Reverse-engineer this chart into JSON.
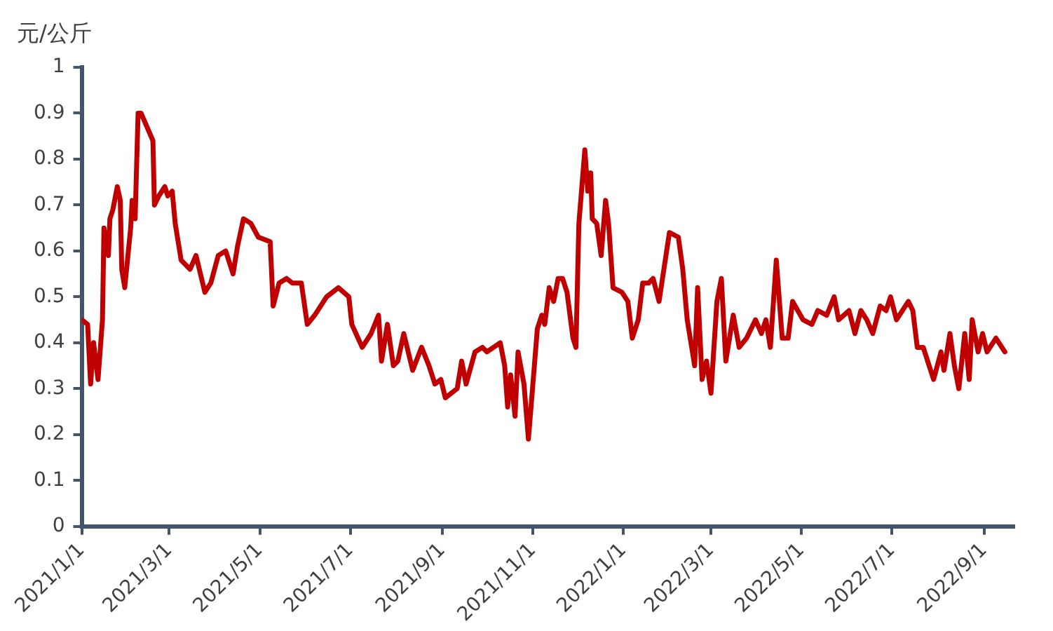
{
  "chart_data": {
    "type": "line",
    "ylabel": "元/公斤",
    "x": [
      "2021-01-01",
      "2021-01-05",
      "2021-01-07",
      "2021-01-09",
      "2021-01-12",
      "2021-01-15",
      "2021-01-16",
      "2021-01-19",
      "2021-01-20",
      "2021-01-22",
      "2021-01-25",
      "2021-01-27",
      "2021-01-28",
      "2021-01-30",
      "2021-02-03",
      "2021-02-04",
      "2021-02-06",
      "2021-02-08",
      "2021-02-10",
      "2021-02-18",
      "2021-02-19",
      "2021-02-22",
      "2021-02-26",
      "2021-02-28",
      "2021-03-03",
      "2021-03-05",
      "2021-03-09",
      "2021-03-15",
      "2021-03-19",
      "2021-03-25",
      "2021-03-29",
      "2021-04-03",
      "2021-04-08",
      "2021-04-13",
      "2021-04-16",
      "2021-04-20",
      "2021-04-25",
      "2021-04-30",
      "2021-05-08",
      "2021-05-10",
      "2021-05-14",
      "2021-05-19",
      "2021-05-23",
      "2021-05-29",
      "2021-06-02",
      "2021-06-07",
      "2021-06-15",
      "2021-06-23",
      "2021-06-30",
      "2021-07-02",
      "2021-07-09",
      "2021-07-15",
      "2021-07-20",
      "2021-07-22",
      "2021-07-26",
      "2021-07-30",
      "2021-08-02",
      "2021-08-06",
      "2021-08-12",
      "2021-08-18",
      "2021-08-23",
      "2021-08-27",
      "2021-08-31",
      "2021-09-03",
      "2021-09-11",
      "2021-09-14",
      "2021-09-17",
      "2021-09-23",
      "2021-09-28",
      "2021-10-01",
      "2021-10-10",
      "2021-10-13",
      "2021-10-15",
      "2021-10-17",
      "2021-10-20",
      "2021-10-22",
      "2021-10-26",
      "2021-10-29",
      "2021-11-04",
      "2021-11-07",
      "2021-11-09",
      "2021-11-12",
      "2021-11-15",
      "2021-11-18",
      "2021-11-21",
      "2021-11-24",
      "2021-11-28",
      "2021-11-30",
      "2021-12-02",
      "2021-12-06",
      "2021-12-08",
      "2021-12-10",
      "2021-12-11",
      "2021-12-14",
      "2021-12-17",
      "2021-12-20",
      "2021-12-22",
      "2021-12-25",
      "2021-12-31",
      "2022-01-04",
      "2022-01-07",
      "2022-01-11",
      "2022-01-14",
      "2022-01-18",
      "2022-01-21",
      "2022-01-25",
      "2022-02-01",
      "2022-02-07",
      "2022-02-10",
      "2022-02-13",
      "2022-02-18",
      "2022-02-20",
      "2022-02-23",
      "2022-02-26",
      "2022-03-01",
      "2022-03-05",
      "2022-03-08",
      "2022-03-11",
      "2022-03-16",
      "2022-03-20",
      "2022-03-25",
      "2022-03-31",
      "2022-04-04",
      "2022-04-07",
      "2022-04-10",
      "2022-04-14",
      "2022-04-18",
      "2022-04-22",
      "2022-04-25",
      "2022-05-02",
      "2022-05-08",
      "2022-05-12",
      "2022-05-18",
      "2022-05-23",
      "2022-05-26",
      "2022-06-02",
      "2022-06-06",
      "2022-06-10",
      "2022-06-14",
      "2022-06-18",
      "2022-06-23",
      "2022-06-27",
      "2022-06-30",
      "2022-07-04",
      "2022-07-12",
      "2022-07-15",
      "2022-07-18",
      "2022-07-22",
      "2022-07-26",
      "2022-07-29",
      "2022-08-03",
      "2022-08-05",
      "2022-08-09",
      "2022-08-12",
      "2022-08-15",
      "2022-08-19",
      "2022-08-22",
      "2022-08-24",
      "2022-08-28",
      "2022-08-31",
      "2022-09-03",
      "2022-09-09",
      "2022-09-15"
    ],
    "series": [
      {
        "color": "#c00000",
        "values": [
          0.45,
          0.44,
          0.31,
          0.4,
          0.32,
          0.45,
          0.65,
          0.59,
          0.67,
          0.69,
          0.74,
          0.71,
          0.56,
          0.52,
          0.65,
          0.71,
          0.67,
          0.9,
          0.9,
          0.84,
          0.7,
          0.72,
          0.74,
          0.72,
          0.73,
          0.66,
          0.58,
          0.56,
          0.59,
          0.51,
          0.53,
          0.59,
          0.6,
          0.55,
          0.61,
          0.67,
          0.66,
          0.63,
          0.62,
          0.48,
          0.53,
          0.54,
          0.53,
          0.53,
          0.44,
          0.46,
          0.5,
          0.52,
          0.5,
          0.44,
          0.39,
          0.42,
          0.46,
          0.36,
          0.44,
          0.35,
          0.36,
          0.42,
          0.34,
          0.39,
          0.35,
          0.31,
          0.32,
          0.28,
          0.3,
          0.36,
          0.31,
          0.38,
          0.39,
          0.38,
          0.4,
          0.35,
          0.26,
          0.33,
          0.24,
          0.38,
          0.31,
          0.19,
          0.43,
          0.46,
          0.44,
          0.52,
          0.49,
          0.54,
          0.54,
          0.51,
          0.41,
          0.39,
          0.66,
          0.82,
          0.73,
          0.77,
          0.67,
          0.66,
          0.59,
          0.71,
          0.66,
          0.52,
          0.51,
          0.49,
          0.41,
          0.45,
          0.53,
          0.53,
          0.54,
          0.49,
          0.64,
          0.63,
          0.56,
          0.45,
          0.35,
          0.52,
          0.32,
          0.36,
          0.29,
          0.49,
          0.54,
          0.36,
          0.46,
          0.39,
          0.41,
          0.45,
          0.42,
          0.45,
          0.39,
          0.58,
          0.41,
          0.41,
          0.49,
          0.45,
          0.44,
          0.47,
          0.46,
          0.5,
          0.45,
          0.47,
          0.42,
          0.47,
          0.45,
          0.42,
          0.48,
          0.47,
          0.5,
          0.45,
          0.49,
          0.47,
          0.39,
          0.39,
          0.35,
          0.32,
          0.38,
          0.34,
          0.42,
          0.35,
          0.3,
          0.42,
          0.32,
          0.45,
          0.38,
          0.42,
          0.38,
          0.41,
          0.38
        ]
      }
    ],
    "xlim": [
      "2021-01-01",
      "2022-09-21"
    ],
    "xticks": [
      {
        "value": "2021-01-01",
        "label": "2021/1/1"
      },
      {
        "value": "2021-03-01",
        "label": "2021/3/1"
      },
      {
        "value": "2021-05-01",
        "label": "2021/5/1"
      },
      {
        "value": "2021-07-01",
        "label": "2021/7/1"
      },
      {
        "value": "2021-09-01",
        "label": "2021/9/1"
      },
      {
        "value": "2021-11-01",
        "label": "2021/11/1"
      },
      {
        "value": "2022-01-01",
        "label": "2022/1/1"
      },
      {
        "value": "2022-03-01",
        "label": "2022/3/1"
      },
      {
        "value": "2022-05-01",
        "label": "2022/5/1"
      },
      {
        "value": "2022-07-01",
        "label": "2022/7/1"
      },
      {
        "value": "2022-09-01",
        "label": "2022/9/1"
      }
    ],
    "ylim": [
      0,
      1
    ],
    "yticks": [
      0,
      0.1,
      0.2,
      0.3,
      0.4,
      0.5,
      0.6,
      0.7,
      0.8,
      0.9,
      1
    ],
    "grid": false,
    "legend": false,
    "marker": "none",
    "line_style": "solid"
  }
}
